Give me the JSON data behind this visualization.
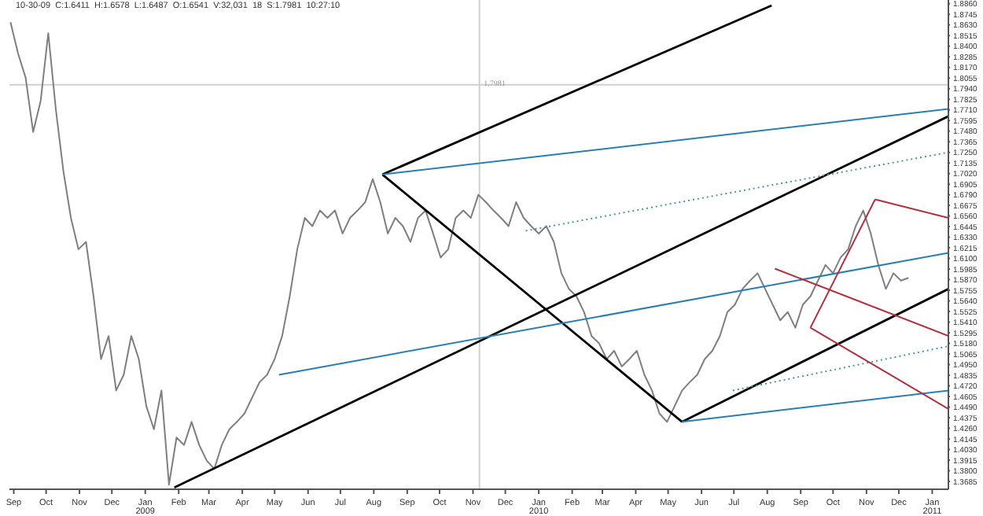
{
  "chart_data": {
    "type": "line",
    "annotations": [
      "10-30-09  C:1.6411  H:1.6578  L:1.6487  O:1.6541  V:32,031  18  S:1.7981  10:27:10"
    ],
    "x": [
      "2008-08-29",
      "2008-09-05",
      "2008-09-12",
      "2008-09-19",
      "2008-09-26",
      "2008-10-03",
      "2008-10-10",
      "2008-10-17",
      "2008-10-24",
      "2008-10-31",
      "2008-11-07",
      "2008-11-14",
      "2008-11-21",
      "2008-11-28",
      "2008-12-05",
      "2008-12-12",
      "2008-12-19",
      "2008-12-26",
      "2009-01-02",
      "2009-01-09",
      "2009-01-16",
      "2009-01-23",
      "2009-01-30",
      "2009-02-06",
      "2009-02-13",
      "2009-02-20",
      "2009-02-27",
      "2009-03-06",
      "2009-03-13",
      "2009-03-20",
      "2009-03-27",
      "2009-04-03",
      "2009-04-10",
      "2009-04-17",
      "2009-04-24",
      "2009-05-01",
      "2009-05-08",
      "2009-05-15",
      "2009-05-22",
      "2009-05-29",
      "2009-06-05",
      "2009-06-12",
      "2009-06-19",
      "2009-06-26",
      "2009-07-03",
      "2009-07-10",
      "2009-07-17",
      "2009-07-24",
      "2009-07-31",
      "2009-08-07",
      "2009-08-14",
      "2009-08-21",
      "2009-08-28",
      "2009-09-04",
      "2009-09-11",
      "2009-09-18",
      "2009-09-25",
      "2009-10-02",
      "2009-10-09",
      "2009-10-16",
      "2009-10-23",
      "2009-10-30",
      "2009-11-06",
      "2009-11-13",
      "2009-11-20",
      "2009-11-27",
      "2009-12-04",
      "2009-12-11",
      "2009-12-18",
      "2009-12-25",
      "2010-01-01",
      "2010-01-08",
      "2010-01-15",
      "2010-01-22",
      "2010-01-29",
      "2010-02-05",
      "2010-02-12",
      "2010-02-19",
      "2010-02-26",
      "2010-03-05",
      "2010-03-12",
      "2010-03-19",
      "2010-03-26",
      "2010-04-02",
      "2010-04-09",
      "2010-04-16",
      "2010-04-23",
      "2010-04-30",
      "2010-05-07",
      "2010-05-14",
      "2010-05-21",
      "2010-05-28",
      "2010-06-04",
      "2010-06-11",
      "2010-06-18",
      "2010-06-25",
      "2010-07-02",
      "2010-07-09",
      "2010-07-16",
      "2010-07-23",
      "2010-07-30",
      "2010-08-06",
      "2010-08-13",
      "2010-08-20",
      "2010-08-27",
      "2010-09-03",
      "2010-09-10",
      "2010-09-17",
      "2010-09-24",
      "2010-10-01",
      "2010-10-08",
      "2010-10-15",
      "2010-10-22",
      "2010-10-29",
      "2010-11-05",
      "2010-11-12",
      "2010-11-19",
      "2010-11-26",
      "2010-12-03",
      "2010-12-10"
    ],
    "series": [
      {
        "color": "#7f7f7f",
        "values": [
          1.866,
          1.832,
          1.806,
          1.747,
          1.781,
          1.854,
          1.772,
          1.705,
          1.654,
          1.62,
          1.628,
          1.569,
          1.501,
          1.526,
          1.467,
          1.484,
          1.526,
          1.501,
          1.45,
          1.425,
          1.467,
          1.365,
          1.416,
          1.408,
          1.433,
          1.408,
          1.391,
          1.382,
          1.408,
          1.425,
          1.433,
          1.442,
          1.459,
          1.476,
          1.484,
          1.501,
          1.526,
          1.569,
          1.62,
          1.654,
          1.645,
          1.662,
          1.654,
          1.662,
          1.637,
          1.654,
          1.662,
          1.671,
          1.696,
          1.671,
          1.637,
          1.654,
          1.645,
          1.628,
          1.654,
          1.662,
          1.637,
          1.611,
          1.62,
          1.654,
          1.662,
          1.654,
          1.679,
          1.671,
          1.662,
          1.654,
          1.645,
          1.671,
          1.654,
          1.645,
          1.637,
          1.645,
          1.628,
          1.594,
          1.577,
          1.569,
          1.552,
          1.526,
          1.518,
          1.501,
          1.51,
          1.493,
          1.501,
          1.51,
          1.484,
          1.467,
          1.442,
          1.433,
          1.45,
          1.467,
          1.476,
          1.484,
          1.501,
          1.51,
          1.526,
          1.552,
          1.56,
          1.577,
          1.586,
          1.594,
          1.577,
          1.56,
          1.543,
          1.552,
          1.535,
          1.56,
          1.569,
          1.586,
          1.603,
          1.594,
          1.611,
          1.62,
          1.645,
          1.662,
          1.637,
          1.603,
          1.577,
          1.594,
          1.586,
          1.589
        ]
      },
      {
        "type": "line",
        "color": "#000000",
        "x": [
          "2009-01-28",
          "2011-01-16"
        ],
        "values": [
          1.362,
          1.764
        ]
      },
      {
        "type": "line",
        "color": "#000000",
        "x": [
          "2009-08-09",
          "2010-08-05"
        ],
        "values": [
          1.701,
          1.884
        ]
      },
      {
        "type": "line",
        "color": "#000000",
        "x": [
          "2009-08-09",
          "2010-05-14"
        ],
        "values": [
          1.701,
          1.433
        ]
      },
      {
        "type": "line",
        "color": "#000000",
        "x": [
          "2010-05-14",
          "2011-01-16"
        ],
        "values": [
          1.433,
          1.577
        ]
      },
      {
        "type": "line",
        "color": "#2a7fb0",
        "x": [
          "2009-08-09",
          "2011-01-16"
        ],
        "values": [
          1.701,
          1.772
        ]
      },
      {
        "type": "line",
        "color": "#2a7fb0",
        "x": [
          "2009-05-05",
          "2011-01-16"
        ],
        "values": [
          1.484,
          1.616
        ]
      },
      {
        "type": "line",
        "color": "#2a7fb0",
        "x": [
          "2010-05-14",
          "2011-01-16"
        ],
        "values": [
          1.433,
          1.467
        ]
      },
      {
        "type": "line",
        "color": "#4f9a8f",
        "line_style": "dotted",
        "x": [
          "2009-12-20",
          "2011-01-16"
        ],
        "values": [
          1.64,
          1.725
        ]
      },
      {
        "type": "line",
        "color": "#4f9a8f",
        "line_style": "dotted",
        "x": [
          "2010-06-30",
          "2011-01-16"
        ],
        "values": [
          1.467,
          1.515
        ]
      },
      {
        "type": "line",
        "color": "#b03040",
        "x": [
          "2010-08-08",
          "2011-01-16"
        ],
        "values": [
          1.599,
          1.526
        ]
      },
      {
        "type": "line",
        "color": "#b03040",
        "x": [
          "2010-09-10",
          "2011-01-16"
        ],
        "values": [
          1.535,
          1.447
        ]
      },
      {
        "type": "line",
        "color": "#b03040",
        "x": [
          "2010-09-10",
          "2010-11-09"
        ],
        "values": [
          1.535,
          1.674
        ]
      },
      {
        "type": "line",
        "color": "#b03040",
        "x": [
          "2010-11-09",
          "2011-01-16"
        ],
        "values": [
          1.674,
          1.654
        ]
      }
    ],
    "ref_lines": [
      {
        "axis": "x",
        "value": "2009-11-07",
        "label": null,
        "color": "#d0d0d0"
      },
      {
        "axis": "y",
        "value": 1.7981,
        "label": "1.7981",
        "color": "#d0d0d0"
      }
    ],
    "marker": "none",
    "grid": false,
    "xlim": [
      "2008-08-28",
      "2011-01-16"
    ],
    "xticks": [
      {
        "value": "2008-09-01",
        "label": "Sep"
      },
      {
        "value": "2008-10-01",
        "label": "Oct"
      },
      {
        "value": "2008-11-01",
        "label": "Nov"
      },
      {
        "value": "2008-12-01",
        "label": "Dec"
      },
      {
        "value": "2009-01-01",
        "label": "Jan\n2009"
      },
      {
        "value": "2009-02-01",
        "label": "Feb"
      },
      {
        "value": "2009-03-01",
        "label": "Mar"
      },
      {
        "value": "2009-04-01",
        "label": "Apr"
      },
      {
        "value": "2009-05-01",
        "label": "May"
      },
      {
        "value": "2009-06-01",
        "label": "Jun"
      },
      {
        "value": "2009-07-01",
        "label": "Jul"
      },
      {
        "value": "2009-08-01",
        "label": "Aug"
      },
      {
        "value": "2009-09-01",
        "label": "Sep"
      },
      {
        "value": "2009-10-01",
        "label": "Oct"
      },
      {
        "value": "2009-11-01",
        "label": "Nov"
      },
      {
        "value": "2009-12-01",
        "label": "Dec"
      },
      {
        "value": "2010-01-01",
        "label": "Jan\n2010"
      },
      {
        "value": "2010-02-01",
        "label": "Feb"
      },
      {
        "value": "2010-03-01",
        "label": "Mar"
      },
      {
        "value": "2010-04-01",
        "label": "Apr"
      },
      {
        "value": "2010-05-01",
        "label": "May"
      },
      {
        "value": "2010-06-01",
        "label": "Jun"
      },
      {
        "value": "2010-07-01",
        "label": "Jul"
      },
      {
        "value": "2010-08-01",
        "label": "Aug"
      },
      {
        "value": "2010-09-01",
        "label": "Sep"
      },
      {
        "value": "2010-10-01",
        "label": "Oct"
      },
      {
        "value": "2010-11-01",
        "label": "Nov"
      },
      {
        "value": "2010-12-01",
        "label": "Dec"
      },
      {
        "value": "2011-01-01",
        "label": "Jan\n2011"
      }
    ],
    "ylim": [
      1.36,
      1.89
    ],
    "yticks": [
      {
        "value": 1.3685,
        "label": "1.3685"
      },
      {
        "value": 1.38,
        "label": "1.3800"
      },
      {
        "value": 1.3915,
        "label": "1.3915"
      },
      {
        "value": 1.403,
        "label": "1.4030"
      },
      {
        "value": 1.4145,
        "label": "1.4145"
      },
      {
        "value": 1.426,
        "label": "1.4260"
      },
      {
        "value": 1.4375,
        "label": "1.4375"
      },
      {
        "value": 1.449,
        "label": "1.4490"
      },
      {
        "value": 1.4605,
        "label": "1.4605"
      },
      {
        "value": 1.472,
        "label": "1.4720"
      },
      {
        "value": 1.4835,
        "label": "1.4835"
      },
      {
        "value": 1.495,
        "label": "1.4950"
      },
      {
        "value": 1.5065,
        "label": "1.5065"
      },
      {
        "value": 1.518,
        "label": "1.5180"
      },
      {
        "value": 1.5295,
        "label": "1.5295"
      },
      {
        "value": 1.541,
        "label": "1.5410"
      },
      {
        "value": 1.5525,
        "label": "1.5525"
      },
      {
        "value": 1.564,
        "label": "1.5640"
      },
      {
        "value": 1.5755,
        "label": "1.5755"
      },
      {
        "value": 1.587,
        "label": "1.5870"
      },
      {
        "value": 1.5985,
        "label": "1.5985"
      },
      {
        "value": 1.61,
        "label": "1.6100"
      },
      {
        "value": 1.6215,
        "label": "1.6215"
      },
      {
        "value": 1.633,
        "label": "1.6330"
      },
      {
        "value": 1.6445,
        "label": "1.6445"
      },
      {
        "value": 1.656,
        "label": "1.6560"
      },
      {
        "value": 1.6675,
        "label": "1.6675"
      },
      {
        "value": 1.679,
        "label": "1.6790"
      },
      {
        "value": 1.6905,
        "label": "1.6905"
      },
      {
        "value": 1.702,
        "label": "1.7020"
      },
      {
        "value": 1.7135,
        "label": "1.7135"
      },
      {
        "value": 1.725,
        "label": "1.7250"
      },
      {
        "value": 1.7365,
        "label": "1.7365"
      },
      {
        "value": 1.748,
        "label": "1.7480"
      },
      {
        "value": 1.7595,
        "label": "1.7595"
      },
      {
        "value": 1.771,
        "label": "1.7710"
      },
      {
        "value": 1.7825,
        "label": "1.7825"
      },
      {
        "value": 1.794,
        "label": "1.7940"
      },
      {
        "value": 1.8055,
        "label": "1.8055"
      },
      {
        "value": 1.817,
        "label": "1.8170"
      },
      {
        "value": 1.8285,
        "label": "1.8285"
      },
      {
        "value": 1.84,
        "label": "1.8400"
      },
      {
        "value": 1.8515,
        "label": "1.8515"
      },
      {
        "value": 1.863,
        "label": "1.8630"
      },
      {
        "value": 1.8745,
        "label": "1.8745"
      },
      {
        "value": 1.886,
        "label": "1.8860"
      }
    ]
  }
}
